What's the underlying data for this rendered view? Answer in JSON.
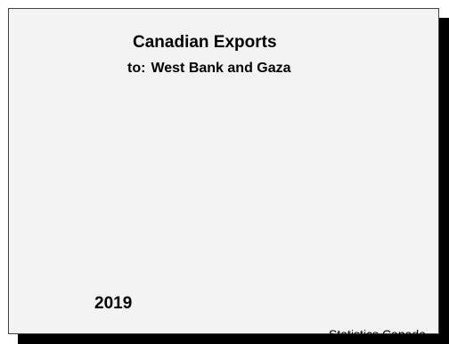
{
  "chart_data": {
    "type": "pie",
    "title": "Canadian Exports",
    "subtitle": {
      "prefix": "to:",
      "partner": "West Bank and Gaza"
    },
    "categories": [],
    "values": [],
    "year": "2019",
    "source": "Statistics Canada",
    "colors": {
      "panel_background": "#f3f3f3",
      "shadow": "#000000",
      "text": "#000000"
    }
  }
}
